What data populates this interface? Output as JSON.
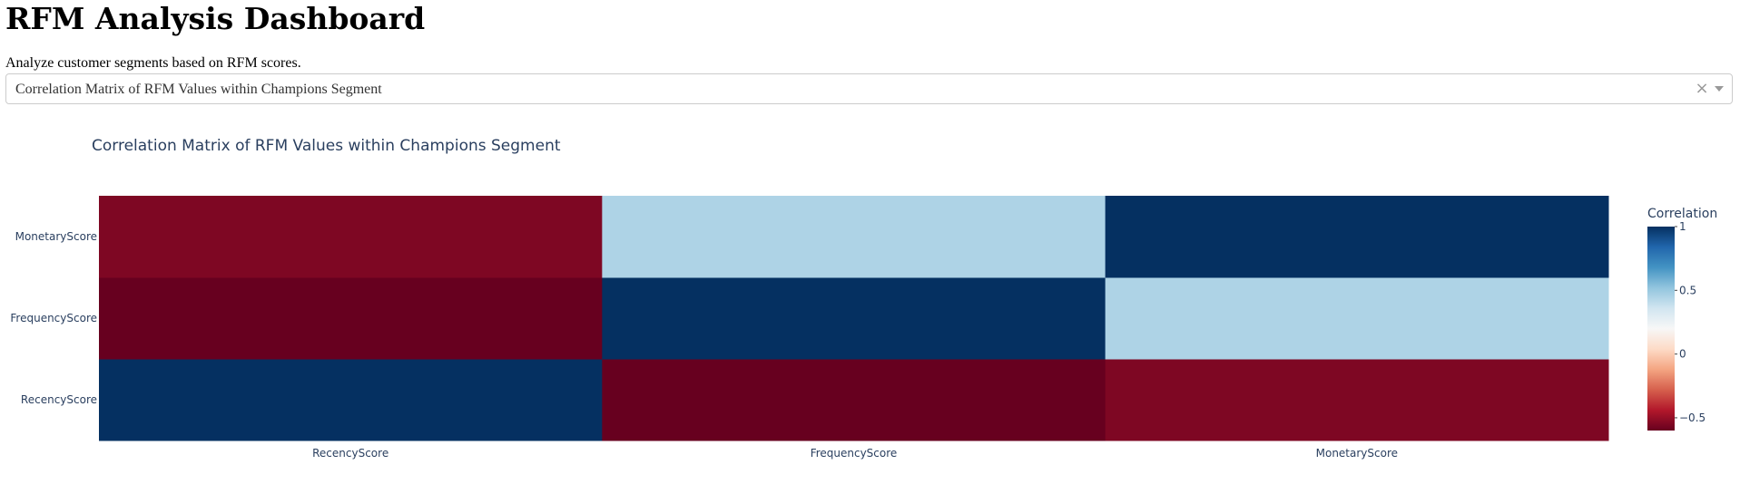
{
  "page": {
    "title": "RFM Analysis Dashboard",
    "description": "Analyze customer segments based on RFM scores."
  },
  "dropdown": {
    "selected": "Correlation Matrix of RFM Values within Champions Segment",
    "clear_icon": "clear-icon",
    "arrow_icon": "chevron-down-icon"
  },
  "chart_data": {
    "type": "heatmap",
    "title": "Correlation Matrix of RFM Values within Champions Segment",
    "x": [
      "RecencyScore",
      "FrequencyScore",
      "MonetaryScore"
    ],
    "y": [
      "RecencyScore",
      "FrequencyScore",
      "MonetaryScore"
    ],
    "z": [
      [
        1.0,
        -0.72,
        -0.55
      ],
      [
        -0.72,
        1.0,
        0.45
      ],
      [
        -0.55,
        0.45,
        1.0
      ]
    ],
    "colorbar": {
      "title": "Correlation",
      "range": [
        -0.6,
        1.0
      ],
      "ticks": [
        1,
        0.5,
        0,
        -0.5
      ],
      "tick_labels": [
        "1",
        "0.5",
        "0",
        "−0.5"
      ]
    },
    "colorscale": [
      "#67001f",
      "#b2182b",
      "#d6604d",
      "#f4a582",
      "#fddbc7",
      "#f7f7f7",
      "#d1e5f0",
      "#92c5de",
      "#4393c3",
      "#2166ac",
      "#053061"
    ],
    "title_color": "#2a3f5f",
    "label_color": "#2a3f5f"
  }
}
